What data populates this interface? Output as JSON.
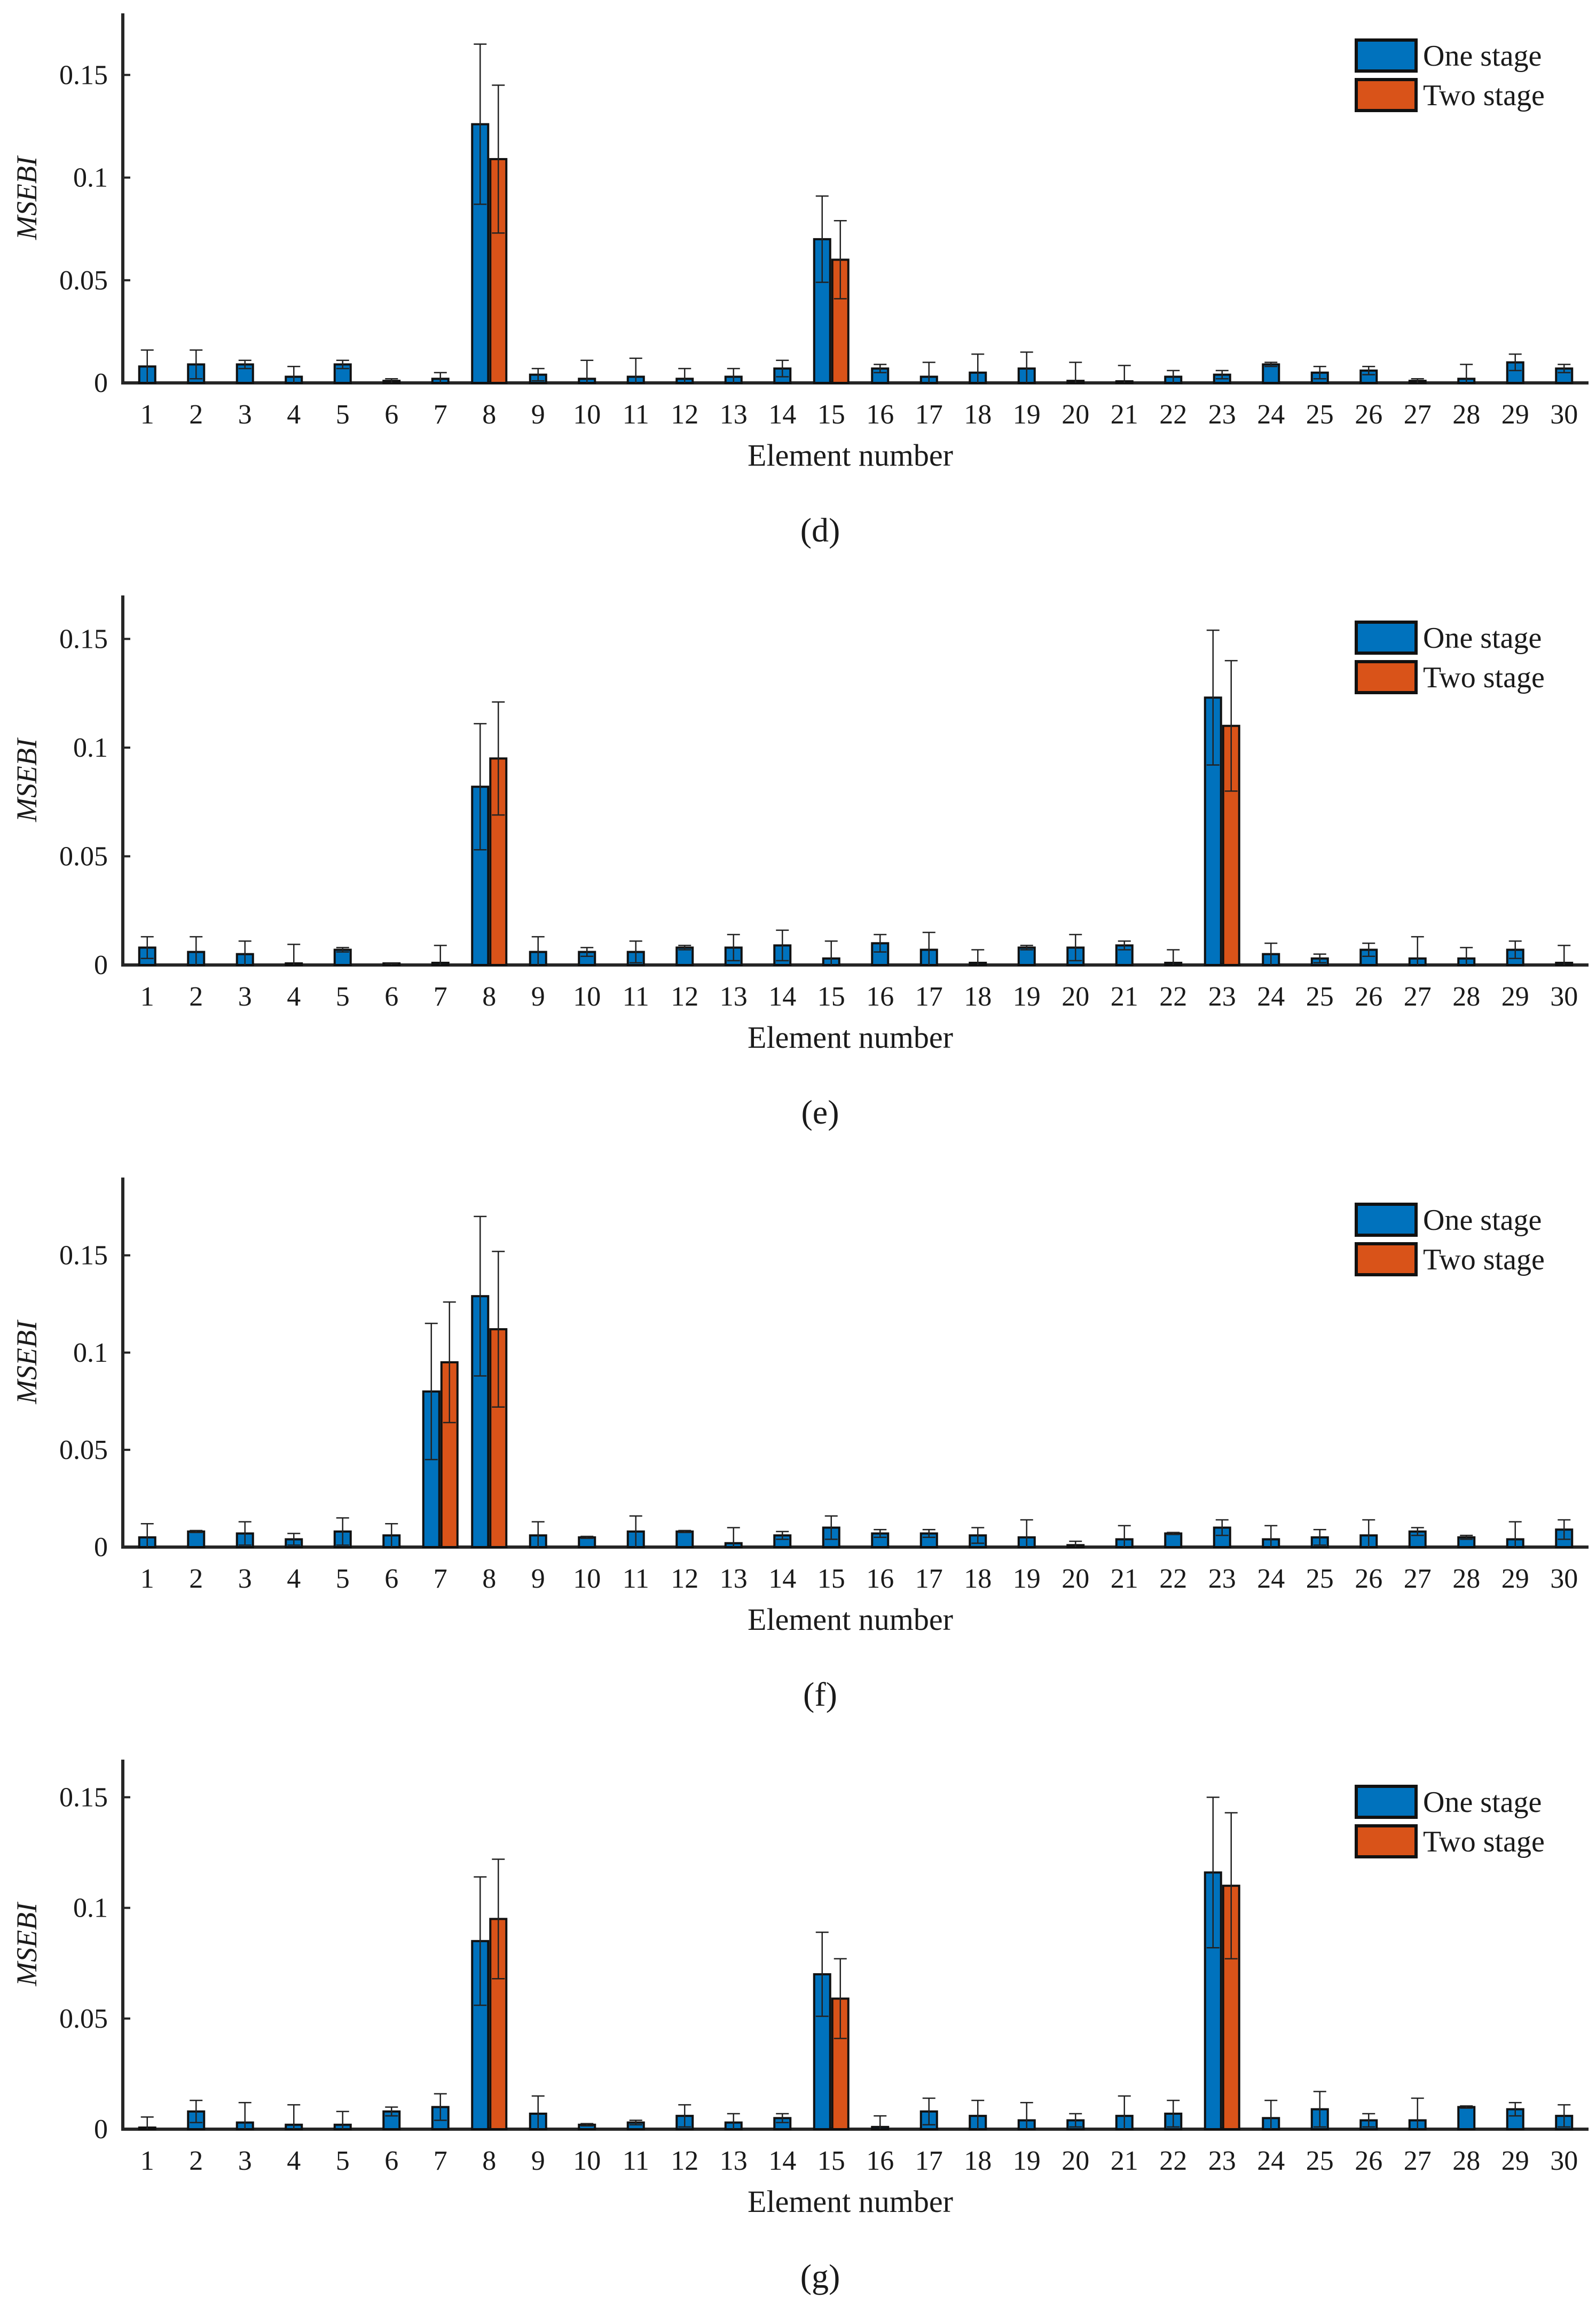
{
  "figure": {
    "colors": {
      "one_stage": "#0072BD",
      "two_stage": "#D95319",
      "axis": "#262626"
    }
  },
  "chart_data": [
    {
      "type": "bar",
      "panel_label": "(d)",
      "xlabel": "Element number",
      "ylabel": "MSEBI",
      "ylim": [
        0,
        0.18
      ],
      "yticks": [
        0,
        0.05,
        0.1,
        0.15
      ],
      "ytick_labels": [
        "0",
        "0.05",
        "0.1",
        "0.15"
      ],
      "categories": [
        "1",
        "2",
        "3",
        "4",
        "5",
        "6",
        "7",
        "8",
        "9",
        "10",
        "11",
        "12",
        "13",
        "14",
        "15",
        "16",
        "17",
        "18",
        "19",
        "20",
        "21",
        "22",
        "23",
        "24",
        "25",
        "26",
        "27",
        "28",
        "29",
        "30"
      ],
      "legend": {
        "entries": [
          "One stage",
          "Two stage"
        ],
        "location": "top-right"
      },
      "series": [
        {
          "name": "One stage",
          "values": [
            0.008,
            0.009,
            0.009,
            0.003,
            0.009,
            0.001,
            0.002,
            0.126,
            0.004,
            0.002,
            0.003,
            0.002,
            0.003,
            0.007,
            0.07,
            0.007,
            0.003,
            0.005,
            0.007,
            0.001,
            0.0005,
            0.003,
            0.004,
            0.009,
            0.005,
            0.006,
            0.001,
            0.002,
            0.01,
            0.007
          ],
          "errors": [
            0.008,
            0.007,
            0.002,
            0.005,
            0.002,
            0.001,
            0.003,
            0.039,
            0.003,
            0.009,
            0.009,
            0.005,
            0.004,
            0.004,
            0.021,
            0.002,
            0.007,
            0.009,
            0.008,
            0.009,
            0.008,
            0.003,
            0.002,
            0.001,
            0.003,
            0.002,
            0.001,
            0.007,
            0.004,
            0.002
          ]
        },
        {
          "name": "Two stage",
          "values": [
            0,
            0,
            0,
            0,
            0,
            0,
            0,
            0.109,
            0,
            0,
            0,
            0,
            0,
            0,
            0.06,
            0,
            0,
            0,
            0,
            0,
            0,
            0,
            0,
            0,
            0,
            0,
            0,
            0,
            0,
            0
          ],
          "errors": [
            0,
            0,
            0,
            0,
            0,
            0,
            0,
            0.036,
            0,
            0,
            0,
            0,
            0,
            0,
            0.019,
            0,
            0,
            0,
            0,
            0,
            0,
            0,
            0,
            0,
            0,
            0,
            0,
            0,
            0,
            0
          ]
        }
      ]
    },
    {
      "type": "bar",
      "panel_label": "(e)",
      "xlabel": "Element number",
      "ylabel": "MSEBI",
      "ylim": [
        0,
        0.17
      ],
      "yticks": [
        0,
        0.05,
        0.1,
        0.15
      ],
      "ytick_labels": [
        "0",
        "0.05",
        "0.1",
        "0.15"
      ],
      "categories": [
        "1",
        "2",
        "3",
        "4",
        "5",
        "6",
        "7",
        "8",
        "9",
        "10",
        "11",
        "12",
        "13",
        "14",
        "15",
        "16",
        "17",
        "18",
        "19",
        "20",
        "21",
        "22",
        "23",
        "24",
        "25",
        "26",
        "27",
        "28",
        "29",
        "30"
      ],
      "legend": {
        "entries": [
          "One stage",
          "Two stage"
        ],
        "location": "top-right"
      },
      "series": [
        {
          "name": "One stage",
          "values": [
            0.008,
            0.006,
            0.005,
            0.0005,
            0.007,
            0.0003,
            0.001,
            0.082,
            0.006,
            0.006,
            0.006,
            0.008,
            0.008,
            0.009,
            0.003,
            0.01,
            0.007,
            0.001,
            0.008,
            0.008,
            0.009,
            0.001,
            0.123,
            0.005,
            0.003,
            0.007,
            0.003,
            0.003,
            0.007,
            0.001
          ],
          "errors": [
            0.005,
            0.007,
            0.006,
            0.009,
            0.001,
            0.0003,
            0.008,
            0.029,
            0.007,
            0.002,
            0.005,
            0.001,
            0.006,
            0.007,
            0.008,
            0.004,
            0.008,
            0.006,
            0.001,
            0.006,
            0.002,
            0.006,
            0.031,
            0.005,
            0.002,
            0.003,
            0.01,
            0.005,
            0.004,
            0.008
          ]
        },
        {
          "name": "Two stage",
          "values": [
            0,
            0,
            0,
            0,
            0,
            0,
            0,
            0.095,
            0,
            0,
            0,
            0,
            0,
            0,
            0,
            0,
            0,
            0,
            0,
            0,
            0,
            0,
            0.11,
            0,
            0,
            0,
            0,
            0,
            0,
            0
          ],
          "errors": [
            0,
            0,
            0,
            0,
            0,
            0,
            0,
            0.026,
            0,
            0,
            0,
            0,
            0,
            0,
            0,
            0,
            0,
            0,
            0,
            0,
            0,
            0,
            0.03,
            0,
            0,
            0,
            0,
            0,
            0,
            0
          ]
        }
      ]
    },
    {
      "type": "bar",
      "panel_label": "(f)",
      "xlabel": "Element number",
      "ylabel": "MSEBI",
      "ylim": [
        0,
        0.19
      ],
      "yticks": [
        0,
        0.05,
        0.1,
        0.15
      ],
      "ytick_labels": [
        "0",
        "0.05",
        "0.1",
        "0.15"
      ],
      "categories": [
        "1",
        "2",
        "3",
        "4",
        "5",
        "6",
        "7",
        "8",
        "9",
        "10",
        "11",
        "12",
        "13",
        "14",
        "15",
        "16",
        "17",
        "18",
        "19",
        "20",
        "21",
        "22",
        "23",
        "24",
        "25",
        "26",
        "27",
        "28",
        "29",
        "30"
      ],
      "legend": {
        "entries": [
          "One stage",
          "Two stage"
        ],
        "location": "top-right"
      },
      "series": [
        {
          "name": "One stage",
          "values": [
            0.005,
            0.008,
            0.007,
            0.004,
            0.008,
            0.006,
            0.08,
            0.129,
            0.006,
            0.005,
            0.008,
            0.008,
            0.002,
            0.006,
            0.01,
            0.007,
            0.007,
            0.006,
            0.005,
            0.001,
            0.004,
            0.007,
            0.01,
            0.004,
            0.005,
            0.006,
            0.008,
            0.005,
            0.004,
            0.009
          ],
          "errors": [
            0.007,
            0.0005,
            0.006,
            0.003,
            0.007,
            0.006,
            0.035,
            0.041,
            0.007,
            0.0005,
            0.008,
            0.0005,
            0.008,
            0.002,
            0.006,
            0.002,
            0.002,
            0.004,
            0.009,
            0.002,
            0.007,
            0.0005,
            0.004,
            0.007,
            0.004,
            0.008,
            0.002,
            0.001,
            0.009,
            0.005
          ]
        },
        {
          "name": "Two stage",
          "values": [
            0,
            0,
            0,
            0,
            0,
            0,
            0.095,
            0.112,
            0,
            0,
            0,
            0,
            0,
            0,
            0,
            0,
            0,
            0,
            0,
            0,
            0,
            0,
            0,
            0,
            0,
            0,
            0,
            0,
            0,
            0
          ],
          "errors": [
            0,
            0,
            0,
            0,
            0,
            0,
            0.031,
            0.04,
            0,
            0,
            0,
            0,
            0,
            0,
            0,
            0,
            0,
            0,
            0,
            0,
            0,
            0,
            0,
            0,
            0,
            0,
            0,
            0,
            0,
            0
          ]
        }
      ]
    },
    {
      "type": "bar",
      "panel_label": "(g)",
      "xlabel": "Element number",
      "ylabel": "MSEBI",
      "ylim": [
        0,
        0.167
      ],
      "yticks": [
        0,
        0.05,
        0.1,
        0.15
      ],
      "ytick_labels": [
        "0",
        "0.05",
        "0.1",
        "0.15"
      ],
      "categories": [
        "1",
        "2",
        "3",
        "4",
        "5",
        "6",
        "7",
        "8",
        "9",
        "10",
        "11",
        "12",
        "13",
        "14",
        "15",
        "16",
        "17",
        "18",
        "19",
        "20",
        "21",
        "22",
        "23",
        "24",
        "25",
        "26",
        "27",
        "28",
        "29",
        "30"
      ],
      "legend": {
        "entries": [
          "One stage",
          "Two stage"
        ],
        "location": "top-right"
      },
      "series": [
        {
          "name": "One stage",
          "values": [
            0.0005,
            0.008,
            0.003,
            0.002,
            0.002,
            0.008,
            0.01,
            0.085,
            0.007,
            0.002,
            0.003,
            0.006,
            0.003,
            0.005,
            0.07,
            0.001,
            0.008,
            0.006,
            0.004,
            0.004,
            0.006,
            0.007,
            0.116,
            0.005,
            0.009,
            0.004,
            0.004,
            0.01,
            0.009,
            0.006
          ],
          "errors": [
            0.005,
            0.005,
            0.009,
            0.009,
            0.006,
            0.002,
            0.006,
            0.029,
            0.008,
            0.0005,
            0.001,
            0.005,
            0.004,
            0.002,
            0.019,
            0.005,
            0.006,
            0.007,
            0.008,
            0.003,
            0.009,
            0.006,
            0.034,
            0.008,
            0.008,
            0.003,
            0.01,
            0.0005,
            0.003,
            0.005
          ]
        },
        {
          "name": "Two stage",
          "values": [
            0,
            0,
            0,
            0,
            0,
            0,
            0,
            0.095,
            0,
            0,
            0,
            0,
            0,
            0,
            0.059,
            0,
            0,
            0,
            0,
            0,
            0,
            0,
            0.11,
            0,
            0,
            0,
            0,
            0,
            0,
            0
          ],
          "errors": [
            0,
            0,
            0,
            0,
            0,
            0,
            0,
            0.027,
            0,
            0,
            0,
            0,
            0,
            0,
            0.018,
            0,
            0,
            0,
            0,
            0,
            0,
            0,
            0.033,
            0,
            0,
            0,
            0,
            0,
            0,
            0
          ]
        }
      ]
    }
  ]
}
